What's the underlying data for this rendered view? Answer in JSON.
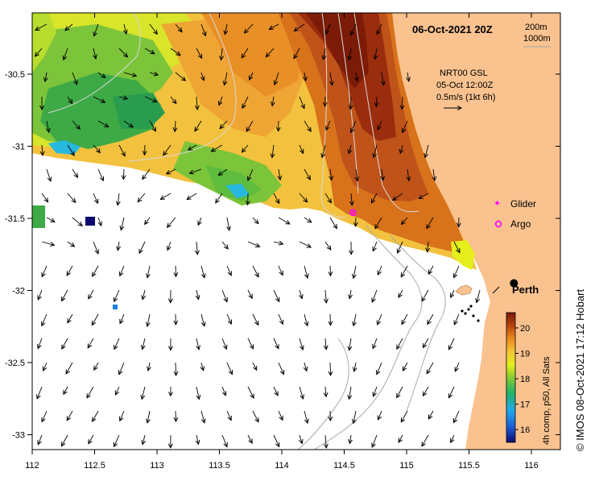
{
  "title": "06-Oct-2021 20Z",
  "contours": {
    "shallow": "200m",
    "deep": "1000m"
  },
  "current_info": {
    "line1": "NRT00 GSL",
    "line2": "05-Oct 12:00Z",
    "line3": "0.5m/s (1kt 6h)"
  },
  "legend": {
    "glider": "Glider",
    "argo": "Argo"
  },
  "city": "Perth",
  "colorbar": {
    "label": "4h comp, p50, All Sats",
    "ticks": [
      "16",
      "17",
      "18",
      "19",
      "20"
    ],
    "min": 15.5,
    "max": 20.6
  },
  "credit": "© IMOS 08-Oct-2021 17:12 Hobart",
  "axes": {
    "x_ticks": [
      "112",
      "112.5",
      "113",
      "113.5",
      "114",
      "114.5",
      "115",
      "115.5",
      "116"
    ],
    "y_ticks": [
      "-30.5",
      "-31",
      "-31.5",
      "-32",
      "-32.5",
      "-33"
    ],
    "x_range": [
      112,
      116.3
    ],
    "y_range": [
      -30.05,
      -33.1
    ]
  },
  "markers": {
    "glider": {
      "lon": 114.57,
      "lat": -31.46
    },
    "perth": {
      "lon": 115.86,
      "lat": -31.95
    }
  },
  "colors": {
    "land": "#f9c28f",
    "marker": "#ff00ff",
    "frame": "#000000"
  }
}
